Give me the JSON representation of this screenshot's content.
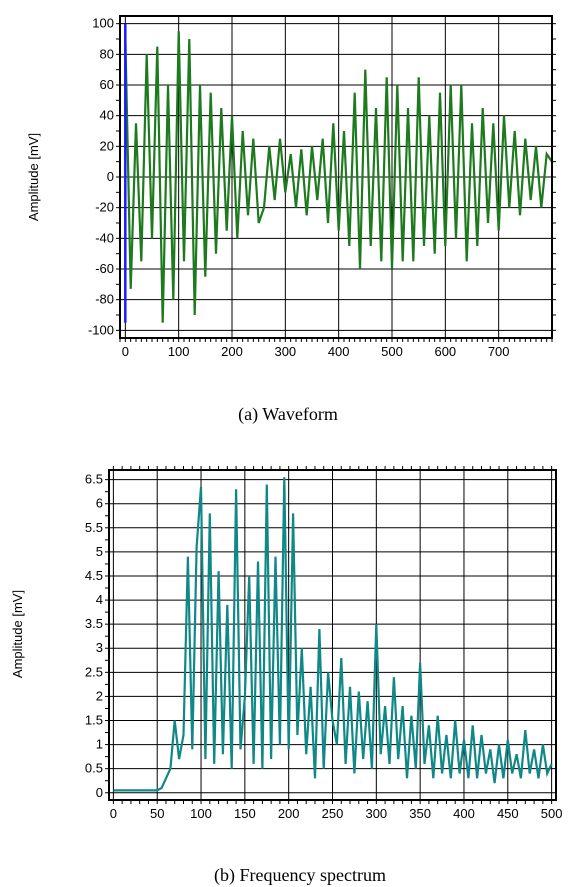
{
  "chart_data": [
    {
      "type": "line",
      "caption": "(a) Waveform",
      "title": "",
      "xlabel": "",
      "ylabel": "Amplitude [mV]",
      "xlim": [
        -10,
        800
      ],
      "ylim": [
        -105,
        105
      ],
      "xticks": [
        0,
        100,
        200,
        300,
        400,
        500,
        600,
        700
      ],
      "yticks": [
        -100,
        -80,
        -60,
        -40,
        -20,
        0,
        20,
        40,
        60,
        80,
        100
      ],
      "grid": true,
      "legend": "none",
      "colors": {
        "series": "#1e7a1e",
        "marker": "#1a1aff"
      },
      "series": [
        {
          "x": [
            0,
            10,
            20,
            30,
            40,
            50,
            60,
            70,
            80,
            90,
            100,
            110,
            120,
            130,
            140,
            150,
            160,
            170,
            180,
            190,
            200,
            210,
            220,
            230,
            240,
            250,
            260,
            270,
            280,
            290,
            300,
            310,
            320,
            330,
            340,
            350,
            360,
            370,
            380,
            390,
            400,
            410,
            420,
            430,
            440,
            450,
            460,
            470,
            480,
            490,
            500,
            510,
            520,
            530,
            540,
            550,
            560,
            570,
            580,
            590,
            600,
            610,
            620,
            630,
            640,
            650,
            660,
            670,
            680,
            690,
            700,
            710,
            720,
            730,
            740,
            750,
            760,
            770,
            780,
            790,
            800
          ],
          "y": [
            92,
            -73,
            35,
            -55,
            80,
            -40,
            85,
            -95,
            60,
            -80,
            95,
            -55,
            90,
            -90,
            60,
            -65,
            55,
            -50,
            45,
            -35,
            40,
            -40,
            30,
            -25,
            25,
            -30,
            -20,
            20,
            -15,
            25,
            -10,
            15,
            -20,
            18,
            -25,
            20,
            -15,
            25,
            -30,
            35,
            -35,
            30,
            -45,
            55,
            -60,
            70,
            -45,
            45,
            -55,
            65,
            -60,
            60,
            -55,
            45,
            -55,
            65,
            -45,
            40,
            -50,
            55,
            -45,
            60,
            -40,
            60,
            -55,
            35,
            -45,
            45,
            -30,
            35,
            -35,
            40,
            -20,
            30,
            -25,
            25,
            -15,
            20,
            -20,
            15,
            10
          ]
        },
        {
          "x": [
            0,
            0
          ],
          "y": [
            -95,
            100
          ]
        }
      ]
    },
    {
      "type": "line",
      "caption": "(b) Frequency spectrum",
      "title": "",
      "xlabel": "",
      "ylabel": "Amplitude [mV]",
      "xlim": [
        -5,
        505
      ],
      "ylim": [
        -0.15,
        6.7
      ],
      "xticks": [
        0,
        50,
        100,
        150,
        200,
        250,
        300,
        350,
        400,
        450,
        500
      ],
      "yticks": [
        0,
        0.5,
        1,
        1.5,
        2,
        2.5,
        3,
        3.5,
        4,
        4.5,
        5,
        5.5,
        6,
        6.5
      ],
      "ytick_labels": [
        "0",
        "0.5",
        "1",
        "1.5",
        "2",
        "2.5",
        "3",
        "3.5",
        "4",
        "4.5",
        "5",
        "5.5",
        "6",
        "6.5"
      ],
      "grid": true,
      "legend": "none",
      "colors": {
        "series": "#108888"
      },
      "series": [
        {
          "x": [
            0,
            50,
            55,
            60,
            65,
            70,
            75,
            80,
            85,
            90,
            95,
            100,
            105,
            110,
            115,
            120,
            125,
            130,
            135,
            140,
            145,
            150,
            155,
            160,
            165,
            170,
            175,
            180,
            185,
            190,
            195,
            200,
            205,
            210,
            215,
            220,
            225,
            230,
            235,
            240,
            245,
            250,
            255,
            260,
            265,
            270,
            275,
            280,
            285,
            290,
            295,
            300,
            305,
            310,
            315,
            320,
            325,
            330,
            335,
            340,
            345,
            350,
            355,
            360,
            365,
            370,
            375,
            380,
            385,
            390,
            395,
            400,
            405,
            410,
            415,
            420,
            425,
            430,
            435,
            440,
            445,
            450,
            455,
            460,
            465,
            470,
            475,
            480,
            485,
            490,
            495,
            500
          ],
          "y": [
            0.05,
            0.05,
            0.1,
            0.3,
            0.5,
            1.5,
            0.7,
            1.2,
            4.9,
            0.9,
            5.1,
            6.35,
            0.7,
            5.8,
            0.6,
            4.6,
            0.8,
            3.9,
            0.5,
            6.3,
            0.9,
            2.0,
            4.5,
            0.6,
            4.8,
            0.5,
            6.4,
            0.7,
            4.9,
            1.0,
            6.55,
            0.9,
            5.8,
            1.2,
            3.0,
            0.8,
            2.2,
            0.3,
            3.4,
            0.5,
            2.5,
            1.5,
            1.0,
            2.8,
            0.6,
            2.2,
            0.4,
            2.1,
            0.7,
            1.9,
            0.5,
            3.5,
            0.8,
            1.8,
            0.6,
            2.4,
            0.7,
            1.8,
            0.3,
            1.6,
            0.5,
            2.7,
            0.6,
            1.4,
            0.3,
            1.6,
            0.4,
            1.2,
            0.3,
            1.5,
            0.4,
            1.1,
            0.3,
            1.4,
            0.3,
            1.2,
            0.4,
            0.9,
            0.2,
            1.0,
            0.3,
            1.1,
            0.4,
            0.8,
            0.3,
            1.3,
            0.4,
            0.9,
            0.3,
            1.0,
            0.4,
            0.6
          ]
        }
      ]
    }
  ]
}
